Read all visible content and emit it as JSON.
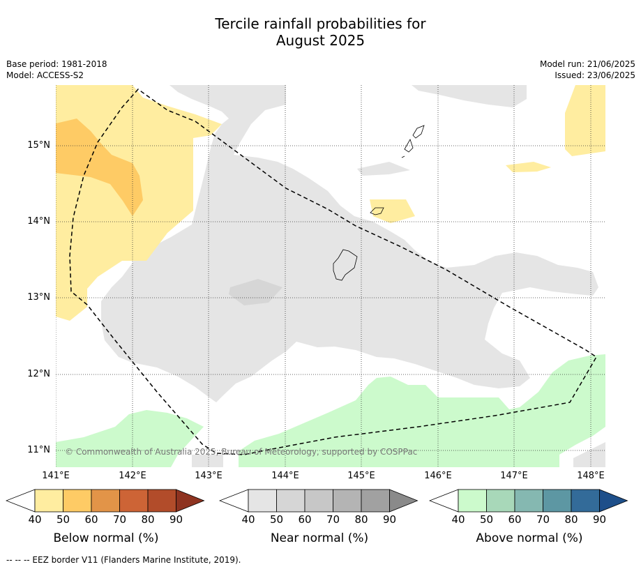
{
  "title_line1": "Tercile rainfall probabilities for",
  "title_line2": "August 2025",
  "meta_left": [
    "Base period: 1981-2018",
    "Model: ACCESS-S2"
  ],
  "meta_right": [
    "Model run: 21/06/2025",
    "Issued: 23/06/2025"
  ],
  "copyright": "© Commonwealth of Australia 2025, Bureau of Meteorology, supported by COSPPac",
  "map": {
    "lat_labels": [
      "15°N",
      "14°N",
      "13°N",
      "12°N",
      "11°N"
    ],
    "lon_labels": [
      "141°E",
      "142°E",
      "143°E",
      "144°E",
      "145°E",
      "146°E",
      "147°E",
      "148°E"
    ],
    "grid": "dotted",
    "eez_line": "dashed black"
  },
  "colorbars": [
    {
      "title": "Below normal (%)",
      "ticks": [
        "40",
        "50",
        "60",
        "70",
        "80",
        "90"
      ],
      "colors": [
        "#ffffff",
        "#ffeda0",
        "#fecb65",
        "#e29448",
        "#cd6436",
        "#b24c2a",
        "#8e3320"
      ]
    },
    {
      "title": "Near normal (%)",
      "ticks": [
        "40",
        "50",
        "60",
        "70",
        "80",
        "90"
      ],
      "colors": [
        "#ffffff",
        "#e5e5e5",
        "#d6d6d6",
        "#c7c7c7",
        "#b4b4b4",
        "#a1a1a1",
        "#8a8a8a"
      ]
    },
    {
      "title": "Above normal (%)",
      "ticks": [
        "40",
        "50",
        "60",
        "70",
        "80",
        "90"
      ],
      "colors": [
        "#ffffff",
        "#ccfacc",
        "#a8d8b9",
        "#85b8b1",
        "#5d97a3",
        "#336b99",
        "#1e4f8a"
      ]
    }
  ],
  "footnote": "--  --  -- EEZ border V11 (Flanders Marine Institute, 2019)."
}
